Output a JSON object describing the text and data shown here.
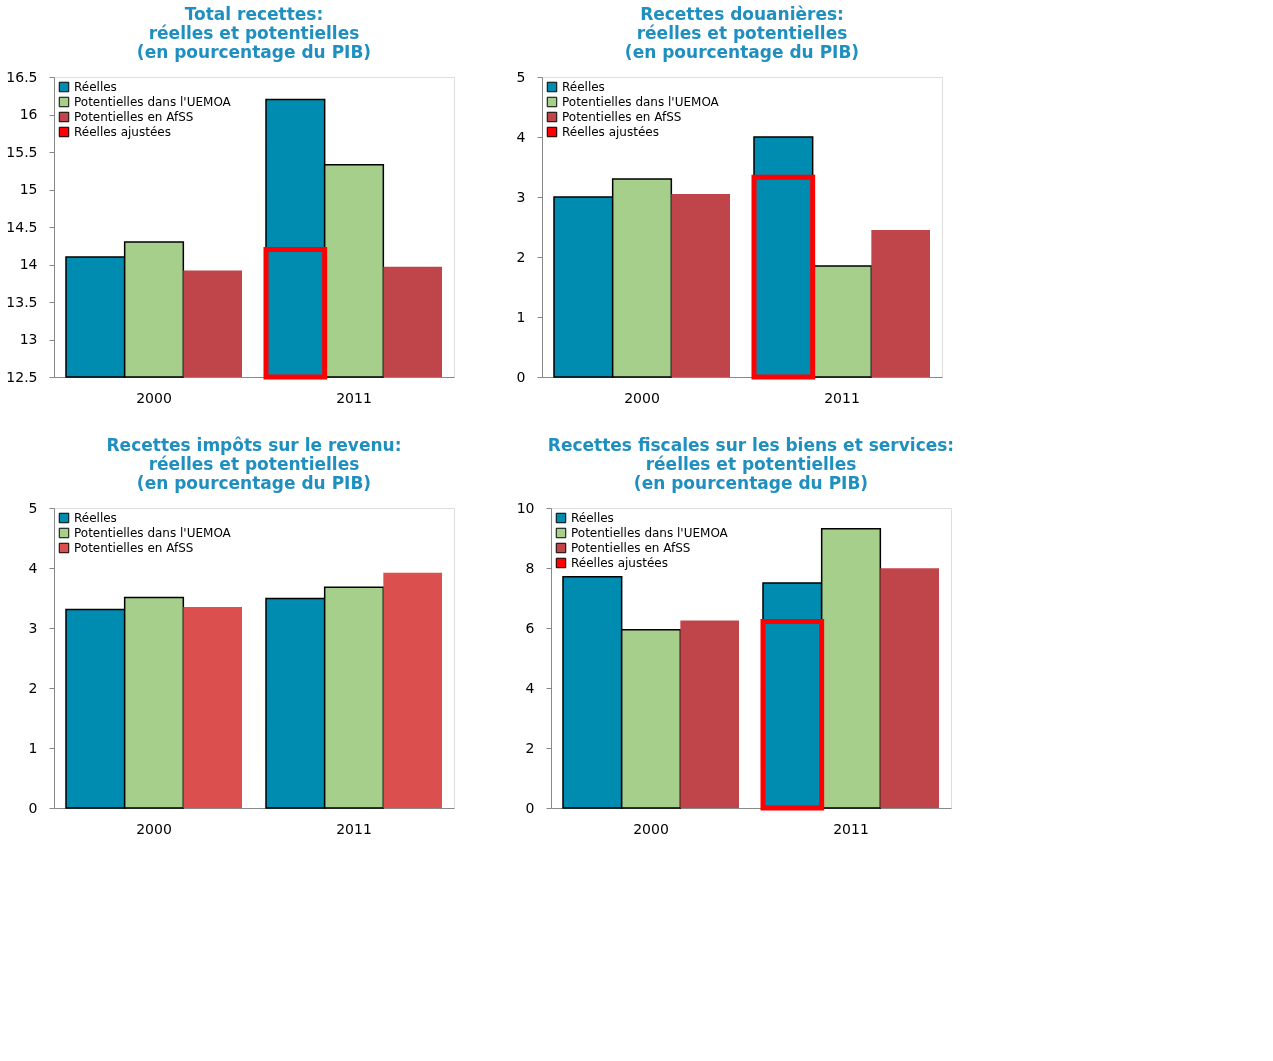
{
  "chart_data": [
    {
      "type": "bar",
      "title": [
        "Total recettes:",
        "réelles et potentielles",
        "(en pourcentage du PIB)"
      ],
      "categories": [
        "2000",
        "2011"
      ],
      "ylim": [
        12.5,
        16.5
      ],
      "yticks": [
        12.5,
        13,
        13.5,
        14,
        14.5,
        15,
        15.5,
        16,
        16.5
      ],
      "legend": "top left",
      "series": [
        {
          "name": "Réelles",
          "color": "#008bb0",
          "values": [
            14.1,
            16.2
          ]
        },
        {
          "name": "Potentielles dans l'UEMOA",
          "color": "#a6cf8c",
          "values": [
            14.3,
            15.33
          ]
        },
        {
          "name": "Potentielles en AfSS",
          "color": "#c0454a",
          "values": [
            13.92,
            13.97
          ]
        },
        {
          "name": "Réelles ajustées",
          "color": "#ff0000",
          "values": [
            null,
            14.2
          ]
        }
      ]
    },
    {
      "type": "bar",
      "title": [
        "Recettes douanières:",
        "réelles et potentielles",
        "(en pourcentage du PIB)"
      ],
      "categories": [
        "2000",
        "2011"
      ],
      "ylim": [
        0,
        5
      ],
      "yticks": [
        0,
        1,
        2,
        3,
        4,
        5
      ],
      "legend": "top left",
      "series": [
        {
          "name": "Réelles",
          "color": "#008bb0",
          "values": [
            3.0,
            4.0
          ]
        },
        {
          "name": "Potentielles dans l'UEMOA",
          "color": "#a6cf8c",
          "values": [
            3.3,
            1.85
          ]
        },
        {
          "name": "Potentielles en AfSS",
          "color": "#c0454a",
          "values": [
            3.05,
            2.45
          ]
        },
        {
          "name": "Réelles ajustées",
          "color": "#ff0000",
          "values": [
            null,
            3.33
          ]
        }
      ]
    },
    {
      "type": "bar",
      "title": [
        "Recettes impôts sur le revenu:",
        "réelles et potentielles",
        "(en  pourcentage du PIB)"
      ],
      "categories": [
        "2000",
        "2011"
      ],
      "ylim": [
        0,
        5
      ],
      "yticks": [
        0,
        1,
        2,
        3,
        4,
        5
      ],
      "legend": "top left",
      "series": [
        {
          "name": "Réelles",
          "color": "#008bb0",
          "values": [
            3.31,
            3.49
          ]
        },
        {
          "name": "Potentielles dans l'UEMOA",
          "color": "#a6cf8c",
          "values": [
            3.51,
            3.68
          ]
        },
        {
          "name": "Potentielles en AfSS",
          "color": "#dc4f4f",
          "values": [
            3.35,
            3.92
          ]
        }
      ]
    },
    {
      "type": "bar",
      "title": [
        "Recettes fiscales sur les biens et services:",
        "réelles et potentielles",
        "(en pourcentage du PIB)"
      ],
      "categories": [
        "2000",
        "2011"
      ],
      "ylim": [
        0,
        10
      ],
      "yticks": [
        0,
        2,
        4,
        6,
        8,
        10
      ],
      "legend": "top left",
      "series": [
        {
          "name": "Réelles",
          "color": "#008bb0",
          "values": [
            7.71,
            7.5
          ]
        },
        {
          "name": "Potentielles dans l'UEMOA",
          "color": "#a6cf8c",
          "values": [
            5.94,
            9.31
          ]
        },
        {
          "name": "Potentielles en AfSS",
          "color": "#c0454a",
          "values": [
            6.25,
            7.99
          ]
        },
        {
          "name": "Réelles ajustées",
          "color": "#ff0000",
          "values": [
            null,
            6.22
          ]
        }
      ]
    }
  ]
}
